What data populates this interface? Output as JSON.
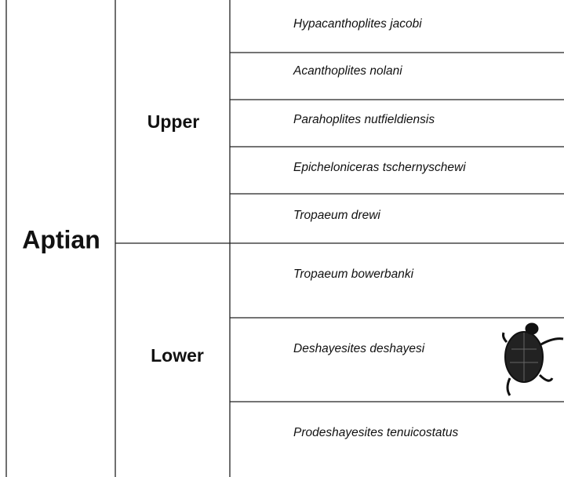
{
  "stage": "Aptian",
  "substages": [
    "Upper",
    "Lower"
  ],
  "zones": [
    "Hypacanthoplites jacobi",
    "Acanthoplites nolani",
    "Parahoplites nutfieldiensis",
    "Epicheloniceras tschernyschewi",
    "Tropaeum drewi",
    "Tropaeum bowerbanki",
    "Deshayesites deshayesi",
    "Prodeshayesites tenuicostatus"
  ]
}
